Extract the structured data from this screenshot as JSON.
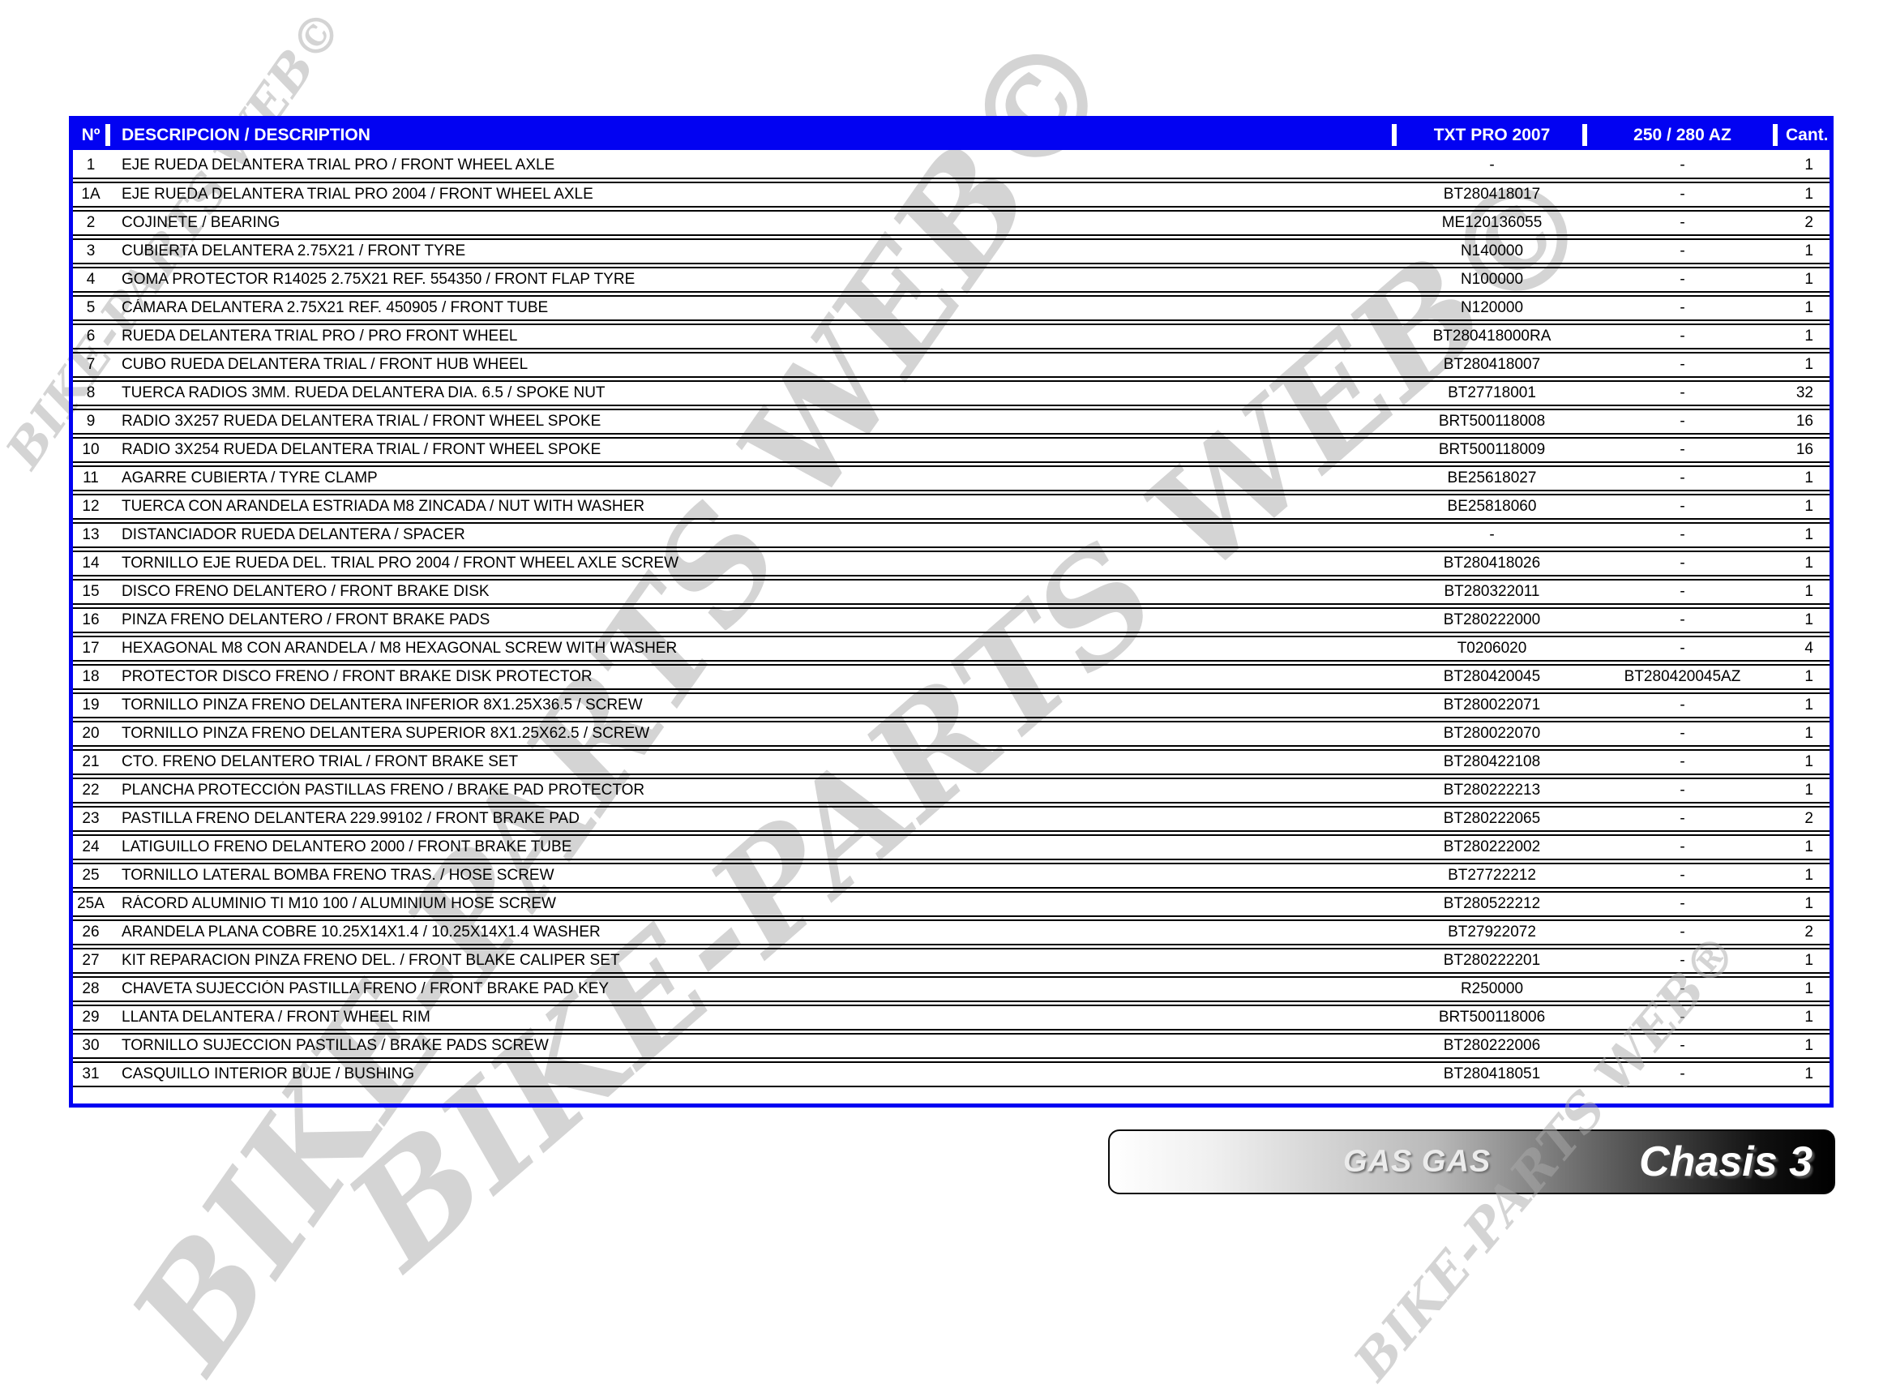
{
  "table": {
    "header": {
      "col_no": "Nº",
      "col_desc": "DESCRIPCION / DESCRIPTION",
      "col_txt": "TXT PRO 2007",
      "col_az": "250 / 280 AZ",
      "col_cant": "Cant."
    },
    "rows": [
      {
        "no": "1",
        "desc": "EJE RUEDA DELANTERA TRIAL PRO / FRONT WHEEL AXLE",
        "txt": "-",
        "az": "-",
        "cant": "1"
      },
      {
        "no": "1A",
        "desc": "EJE RUEDA DELANTERA TRIAL PRO 2004 / FRONT WHEEL AXLE",
        "txt": "BT280418017",
        "az": "-",
        "cant": "1"
      },
      {
        "no": "2",
        "desc": "COJINETE / BEARING",
        "txt": "ME120136055",
        "az": "-",
        "cant": "2"
      },
      {
        "no": "3",
        "desc": "CUBIERTA DELANTERA 2.75X21 / FRONT TYRE",
        "txt": "N140000",
        "az": "-",
        "cant": "1"
      },
      {
        "no": "4",
        "desc": "GOMA PROTECTOR R14025 2.75X21 REF. 554350 / FRONT FLAP TYRE",
        "txt": "N100000",
        "az": "-",
        "cant": "1"
      },
      {
        "no": "5",
        "desc": "CÁMARA DELANTERA 2.75X21 REF. 450905 / FRONT TUBE",
        "txt": "N120000",
        "az": "-",
        "cant": "1"
      },
      {
        "no": "6",
        "desc": "RUEDA DELANTERA TRIAL PRO / PRO FRONT WHEEL",
        "txt": "BT280418000RA",
        "az": "-",
        "cant": "1"
      },
      {
        "no": "7",
        "desc": "CUBO RUEDA DELANTERA TRIAL / FRONT HUB WHEEL",
        "txt": "BT280418007",
        "az": "-",
        "cant": "1"
      },
      {
        "no": "8",
        "desc": "TUERCA RADIOS 3MM. RUEDA DELANTERA DIA. 6.5 / SPOKE NUT",
        "txt": "BT27718001",
        "az": "-",
        "cant": "32"
      },
      {
        "no": "9",
        "desc": "RADIO 3X257 RUEDA DELANTERA TRIAL / FRONT WHEEL SPOKE",
        "txt": "BRT500118008",
        "az": "-",
        "cant": "16"
      },
      {
        "no": "10",
        "desc": "RADIO 3X254 RUEDA DELANTERA TRIAL / FRONT WHEEL SPOKE",
        "txt": "BRT500118009",
        "az": "-",
        "cant": "16"
      },
      {
        "no": "11",
        "desc": "AGARRE CUBIERTA / TYRE CLAMP",
        "txt": "BE25618027",
        "az": "-",
        "cant": "1"
      },
      {
        "no": "12",
        "desc": "TUERCA CON ARANDELA ESTRIADA M8 ZINCADA / NUT WITH WASHER",
        "txt": "BE25818060",
        "az": "-",
        "cant": "1"
      },
      {
        "no": "13",
        "desc": "DISTANCIADOR RUEDA DELANTERA / SPACER",
        "txt": "-",
        "az": "-",
        "cant": "1"
      },
      {
        "no": "14",
        "desc": "TORNILLO EJE RUEDA DEL. TRIAL PRO 2004 / FRONT WHEEL AXLE SCREW",
        "txt": "BT280418026",
        "az": "-",
        "cant": "1"
      },
      {
        "no": "15",
        "desc": "DISCO FRENO DELANTERO / FRONT BRAKE DISK",
        "txt": "BT280322011",
        "az": "-",
        "cant": "1"
      },
      {
        "no": "16",
        "desc": "PINZA FRENO DELANTERO / FRONT BRAKE PADS",
        "txt": "BT280222000",
        "az": "-",
        "cant": "1"
      },
      {
        "no": "17",
        "desc": "HEXAGONAL M8 CON ARANDELA / M8 HEXAGONAL SCREW WITH WASHER",
        "txt": "T0206020",
        "az": "-",
        "cant": "4"
      },
      {
        "no": "18",
        "desc": "PROTECTOR DISCO FRENO / FRONT BRAKE DISK PROTECTOR",
        "txt": "BT280420045",
        "az": "BT280420045AZ",
        "cant": "1"
      },
      {
        "no": "19",
        "desc": "TORNILLO PINZA FRENO DELANTERA INFERIOR 8X1.25X36.5 / SCREW",
        "txt": "BT280022071",
        "az": "-",
        "cant": "1"
      },
      {
        "no": "20",
        "desc": "TORNILLO PINZA FRENO DELANTERA SUPERIOR 8X1.25X62.5 / SCREW",
        "txt": "BT280022070",
        "az": "-",
        "cant": "1"
      },
      {
        "no": "21",
        "desc": "CTO. FRENO DELANTERO TRIAL / FRONT BRAKE SET",
        "txt": "BT280422108",
        "az": "-",
        "cant": "1"
      },
      {
        "no": "22",
        "desc": "PLANCHA PROTECCIÓN PASTILLAS FRENO / BRAKE PAD PROTECTOR",
        "txt": "BT280222213",
        "az": "-",
        "cant": "1"
      },
      {
        "no": "23",
        "desc": "PASTILLA FRENO DELANTERA 229.99102 / FRONT BRAKE PAD",
        "txt": "BT280222065",
        "az": "-",
        "cant": "2"
      },
      {
        "no": "24",
        "desc": "LATIGUILLO FRENO DELANTERO 2000 / FRONT BRAKE TUBE",
        "txt": "BT280222002",
        "az": "-",
        "cant": "1"
      },
      {
        "no": "25",
        "desc": "TORNILLO LATERAL BOMBA FRENO TRAS. / HOSE SCREW",
        "txt": "BT27722212",
        "az": "-",
        "cant": "1"
      },
      {
        "no": "25A",
        "desc": "RÁCORD ALUMINIO TI M10 100 / ALUMINIUM HOSE SCREW",
        "txt": "BT280522212",
        "az": "-",
        "cant": "1"
      },
      {
        "no": "26",
        "desc": "ARANDELA PLANA COBRE 10.25X14X1.4 / 10.25X14X1.4 WASHER",
        "txt": "BT27922072",
        "az": "-",
        "cant": "2"
      },
      {
        "no": "27",
        "desc": "KIT REPARACION PINZA FRENO DEL. / FRONT BLAKE CALIPER SET",
        "txt": "BT280222201",
        "az": "-",
        "cant": "1"
      },
      {
        "no": "28",
        "desc": "CHAVETA SUJECCIÓN PASTILLA FRENO / FRONT BRAKE PAD KEY",
        "txt": "R250000",
        "az": "-",
        "cant": "1"
      },
      {
        "no": "29",
        "desc": "LLANTA DELANTERA / FRONT WHEEL RIM",
        "txt": "BRT500118006",
        "az": "-",
        "cant": "1"
      },
      {
        "no": "30",
        "desc": "TORNILLO SUJECCION PASTILLAS / BRAKE PADS SCREW",
        "txt": "BT280222006",
        "az": "-",
        "cant": "1"
      },
      {
        "no": "31",
        "desc": "CASQUILLO INTERIOR BUJE / BUSHING",
        "txt": "BT280418051",
        "az": "-",
        "cant": "1"
      }
    ]
  },
  "banner": {
    "brand": "GAS GAS",
    "title": "Chasis 3"
  },
  "watermarks": [
    "BIKE-PARTS WEB©",
    "BIKE-PARTS WEB©",
    "BIKE-PARTS WEB®",
    "BIKE-PARTS WEB©"
  ],
  "colors": {
    "accent_blue": "#0202f2",
    "row_line_black": "#000000",
    "watermark_gray": "#ababab"
  }
}
